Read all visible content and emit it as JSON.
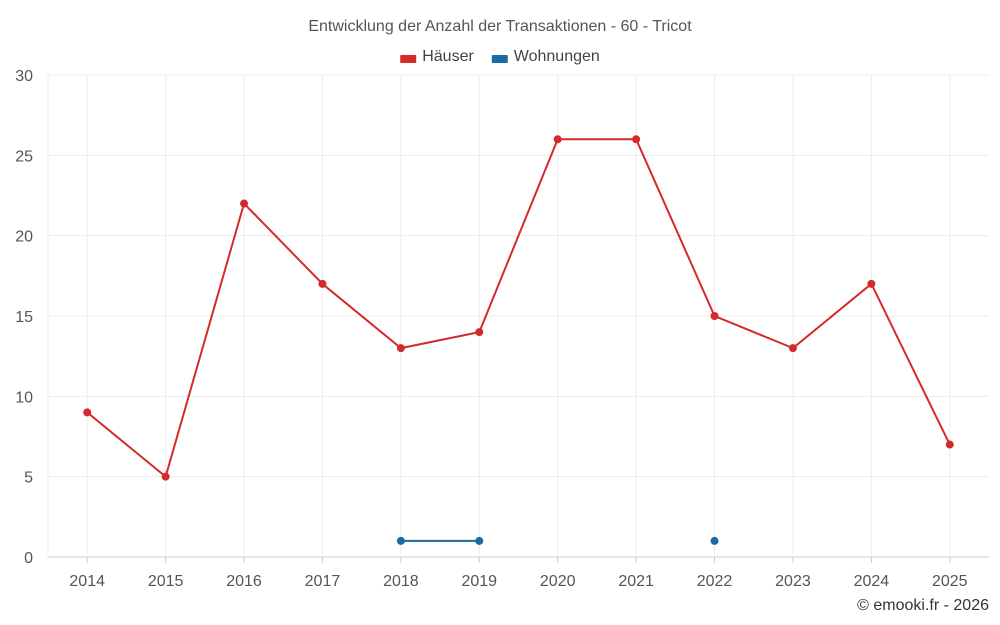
{
  "chart_data": {
    "type": "line",
    "title": "Entwicklung der Anzahl der Transaktionen - 60 - Tricot",
    "categories": [
      "2014",
      "2015",
      "2016",
      "2017",
      "2018",
      "2019",
      "2020",
      "2021",
      "2022",
      "2023",
      "2024",
      "2025"
    ],
    "ylim": [
      0,
      30
    ],
    "yticks": [
      0,
      5,
      10,
      15,
      20,
      25,
      30
    ],
    "xlabel": "",
    "ylabel": "",
    "grid": true,
    "legend_position": "top-center",
    "series": [
      {
        "name": "Häuser",
        "color": "#d42a2a",
        "values": [
          9,
          5,
          22,
          17,
          13,
          14,
          26,
          26,
          15,
          13,
          17,
          7
        ]
      },
      {
        "name": "Wohnungen",
        "color": "#1a6aa3",
        "values": [
          null,
          null,
          null,
          null,
          1,
          1,
          null,
          null,
          1,
          null,
          null,
          null
        ]
      }
    ]
  },
  "footer": {
    "copyright": "© emooki.fr - 2026"
  }
}
